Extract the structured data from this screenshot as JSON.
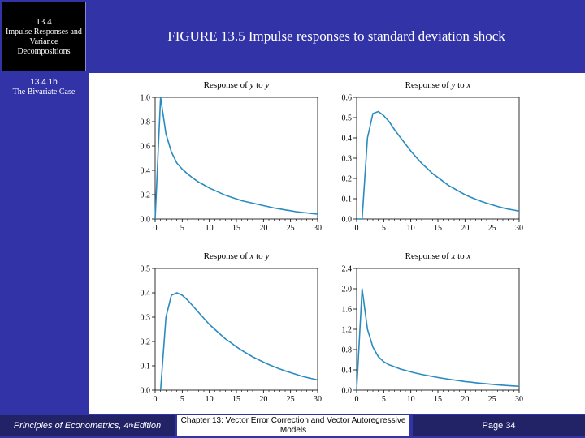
{
  "section": {
    "number": "13.4",
    "title": "Impulse Responses and Variance Decompositions"
  },
  "slide": {
    "title": "FIGURE 13.5 Impulse responses to standard deviation shock"
  },
  "sidebar": {
    "subsection_number": "13.4.1b",
    "subsection_title": "The Bivariate Case"
  },
  "footer": {
    "book_prefix": "Principles of Econometrics, 4",
    "book_sup": "th",
    "book_suffix": " Edition",
    "chapter": "Chapter 13: Vector Error Correction and Vector Autoregressive Models",
    "page": "Page 34"
  },
  "colors": {
    "line": "#2a8bc0",
    "background": "#3333a8"
  },
  "chart_data": [
    {
      "type": "line",
      "title_parts": [
        "Response of ",
        "y",
        " to ",
        "y"
      ],
      "xlim": [
        0,
        30
      ],
      "ylim": [
        0,
        1.0
      ],
      "xticks": [
        "0",
        "5",
        "10",
        "15",
        "20",
        "25",
        "30"
      ],
      "yticks": [
        "0.0",
        "0.2",
        "0.4",
        "0.6",
        "0.8",
        "1.0"
      ],
      "x": [
        0,
        1,
        2,
        3,
        4,
        5,
        6,
        7,
        8,
        9,
        10,
        11,
        12,
        13,
        14,
        15,
        16,
        17,
        18,
        19,
        20,
        21,
        22,
        23,
        24,
        25,
        26,
        27,
        28,
        29,
        30
      ],
      "values": [
        0,
        1.0,
        0.7,
        0.55,
        0.46,
        0.41,
        0.37,
        0.335,
        0.305,
        0.28,
        0.255,
        0.235,
        0.215,
        0.195,
        0.18,
        0.165,
        0.15,
        0.14,
        0.13,
        0.12,
        0.11,
        0.1,
        0.09,
        0.083,
        0.075,
        0.068,
        0.06,
        0.055,
        0.05,
        0.045,
        0.04
      ]
    },
    {
      "type": "line",
      "title_parts": [
        "Response of ",
        "y",
        " to ",
        "x"
      ],
      "xlim": [
        0,
        30
      ],
      "ylim": [
        0,
        0.6
      ],
      "xticks": [
        "0",
        "5",
        "10",
        "15",
        "20",
        "25",
        "30"
      ],
      "yticks": [
        "0.0",
        "0.1",
        "0.2",
        "0.3",
        "0.4",
        "0.5",
        "0.6"
      ],
      "x": [
        0,
        1,
        2,
        3,
        4,
        5,
        6,
        7,
        8,
        9,
        10,
        11,
        12,
        13,
        14,
        15,
        16,
        17,
        18,
        19,
        20,
        21,
        22,
        23,
        24,
        25,
        26,
        27,
        28,
        29,
        30
      ],
      "values": [
        0,
        0,
        0.4,
        0.52,
        0.53,
        0.51,
        0.48,
        0.44,
        0.405,
        0.37,
        0.335,
        0.305,
        0.275,
        0.25,
        0.225,
        0.205,
        0.185,
        0.165,
        0.15,
        0.135,
        0.12,
        0.108,
        0.097,
        0.087,
        0.078,
        0.07,
        0.062,
        0.055,
        0.049,
        0.044,
        0.039
      ]
    },
    {
      "type": "line",
      "title_parts": [
        "Response of ",
        "x",
        " to ",
        "y"
      ],
      "xlim": [
        0,
        30
      ],
      "ylim": [
        0,
        0.5
      ],
      "xticks": [
        "0",
        "5",
        "10",
        "15",
        "20",
        "25",
        "30"
      ],
      "yticks": [
        "0.0",
        "0.1",
        "0.2",
        "0.3",
        "0.4",
        "0.5"
      ],
      "x": [
        1,
        2,
        3,
        4,
        5,
        6,
        7,
        8,
        9,
        10,
        11,
        12,
        13,
        14,
        15,
        16,
        17,
        18,
        19,
        20,
        21,
        22,
        23,
        24,
        25,
        26,
        27,
        28,
        29,
        30
      ],
      "values": [
        0,
        0.3,
        0.39,
        0.4,
        0.39,
        0.37,
        0.345,
        0.32,
        0.295,
        0.27,
        0.25,
        0.23,
        0.21,
        0.195,
        0.178,
        0.163,
        0.15,
        0.137,
        0.126,
        0.115,
        0.105,
        0.096,
        0.087,
        0.079,
        0.072,
        0.065,
        0.058,
        0.052,
        0.047,
        0.042
      ]
    },
    {
      "type": "line",
      "title_parts": [
        "Response of ",
        "x",
        " to ",
        "x"
      ],
      "xlim": [
        0,
        30
      ],
      "ylim": [
        0,
        2.4
      ],
      "xticks": [
        "0",
        "5",
        "10",
        "15",
        "20",
        "25",
        "30"
      ],
      "yticks": [
        "0.0",
        "0.4",
        "0.8",
        "1.2",
        "1.6",
        "2.0",
        "2.4"
      ],
      "x": [
        0,
        1,
        2,
        3,
        4,
        5,
        6,
        7,
        8,
        9,
        10,
        11,
        12,
        13,
        14,
        15,
        16,
        17,
        18,
        19,
        20,
        21,
        22,
        23,
        24,
        25,
        26,
        27,
        28,
        29,
        30
      ],
      "values": [
        0,
        2.0,
        1.2,
        0.85,
        0.66,
        0.56,
        0.5,
        0.46,
        0.42,
        0.39,
        0.36,
        0.335,
        0.31,
        0.29,
        0.27,
        0.25,
        0.232,
        0.215,
        0.2,
        0.185,
        0.17,
        0.158,
        0.146,
        0.135,
        0.125,
        0.115,
        0.106,
        0.098,
        0.09,
        0.083,
        0.076
      ]
    }
  ]
}
